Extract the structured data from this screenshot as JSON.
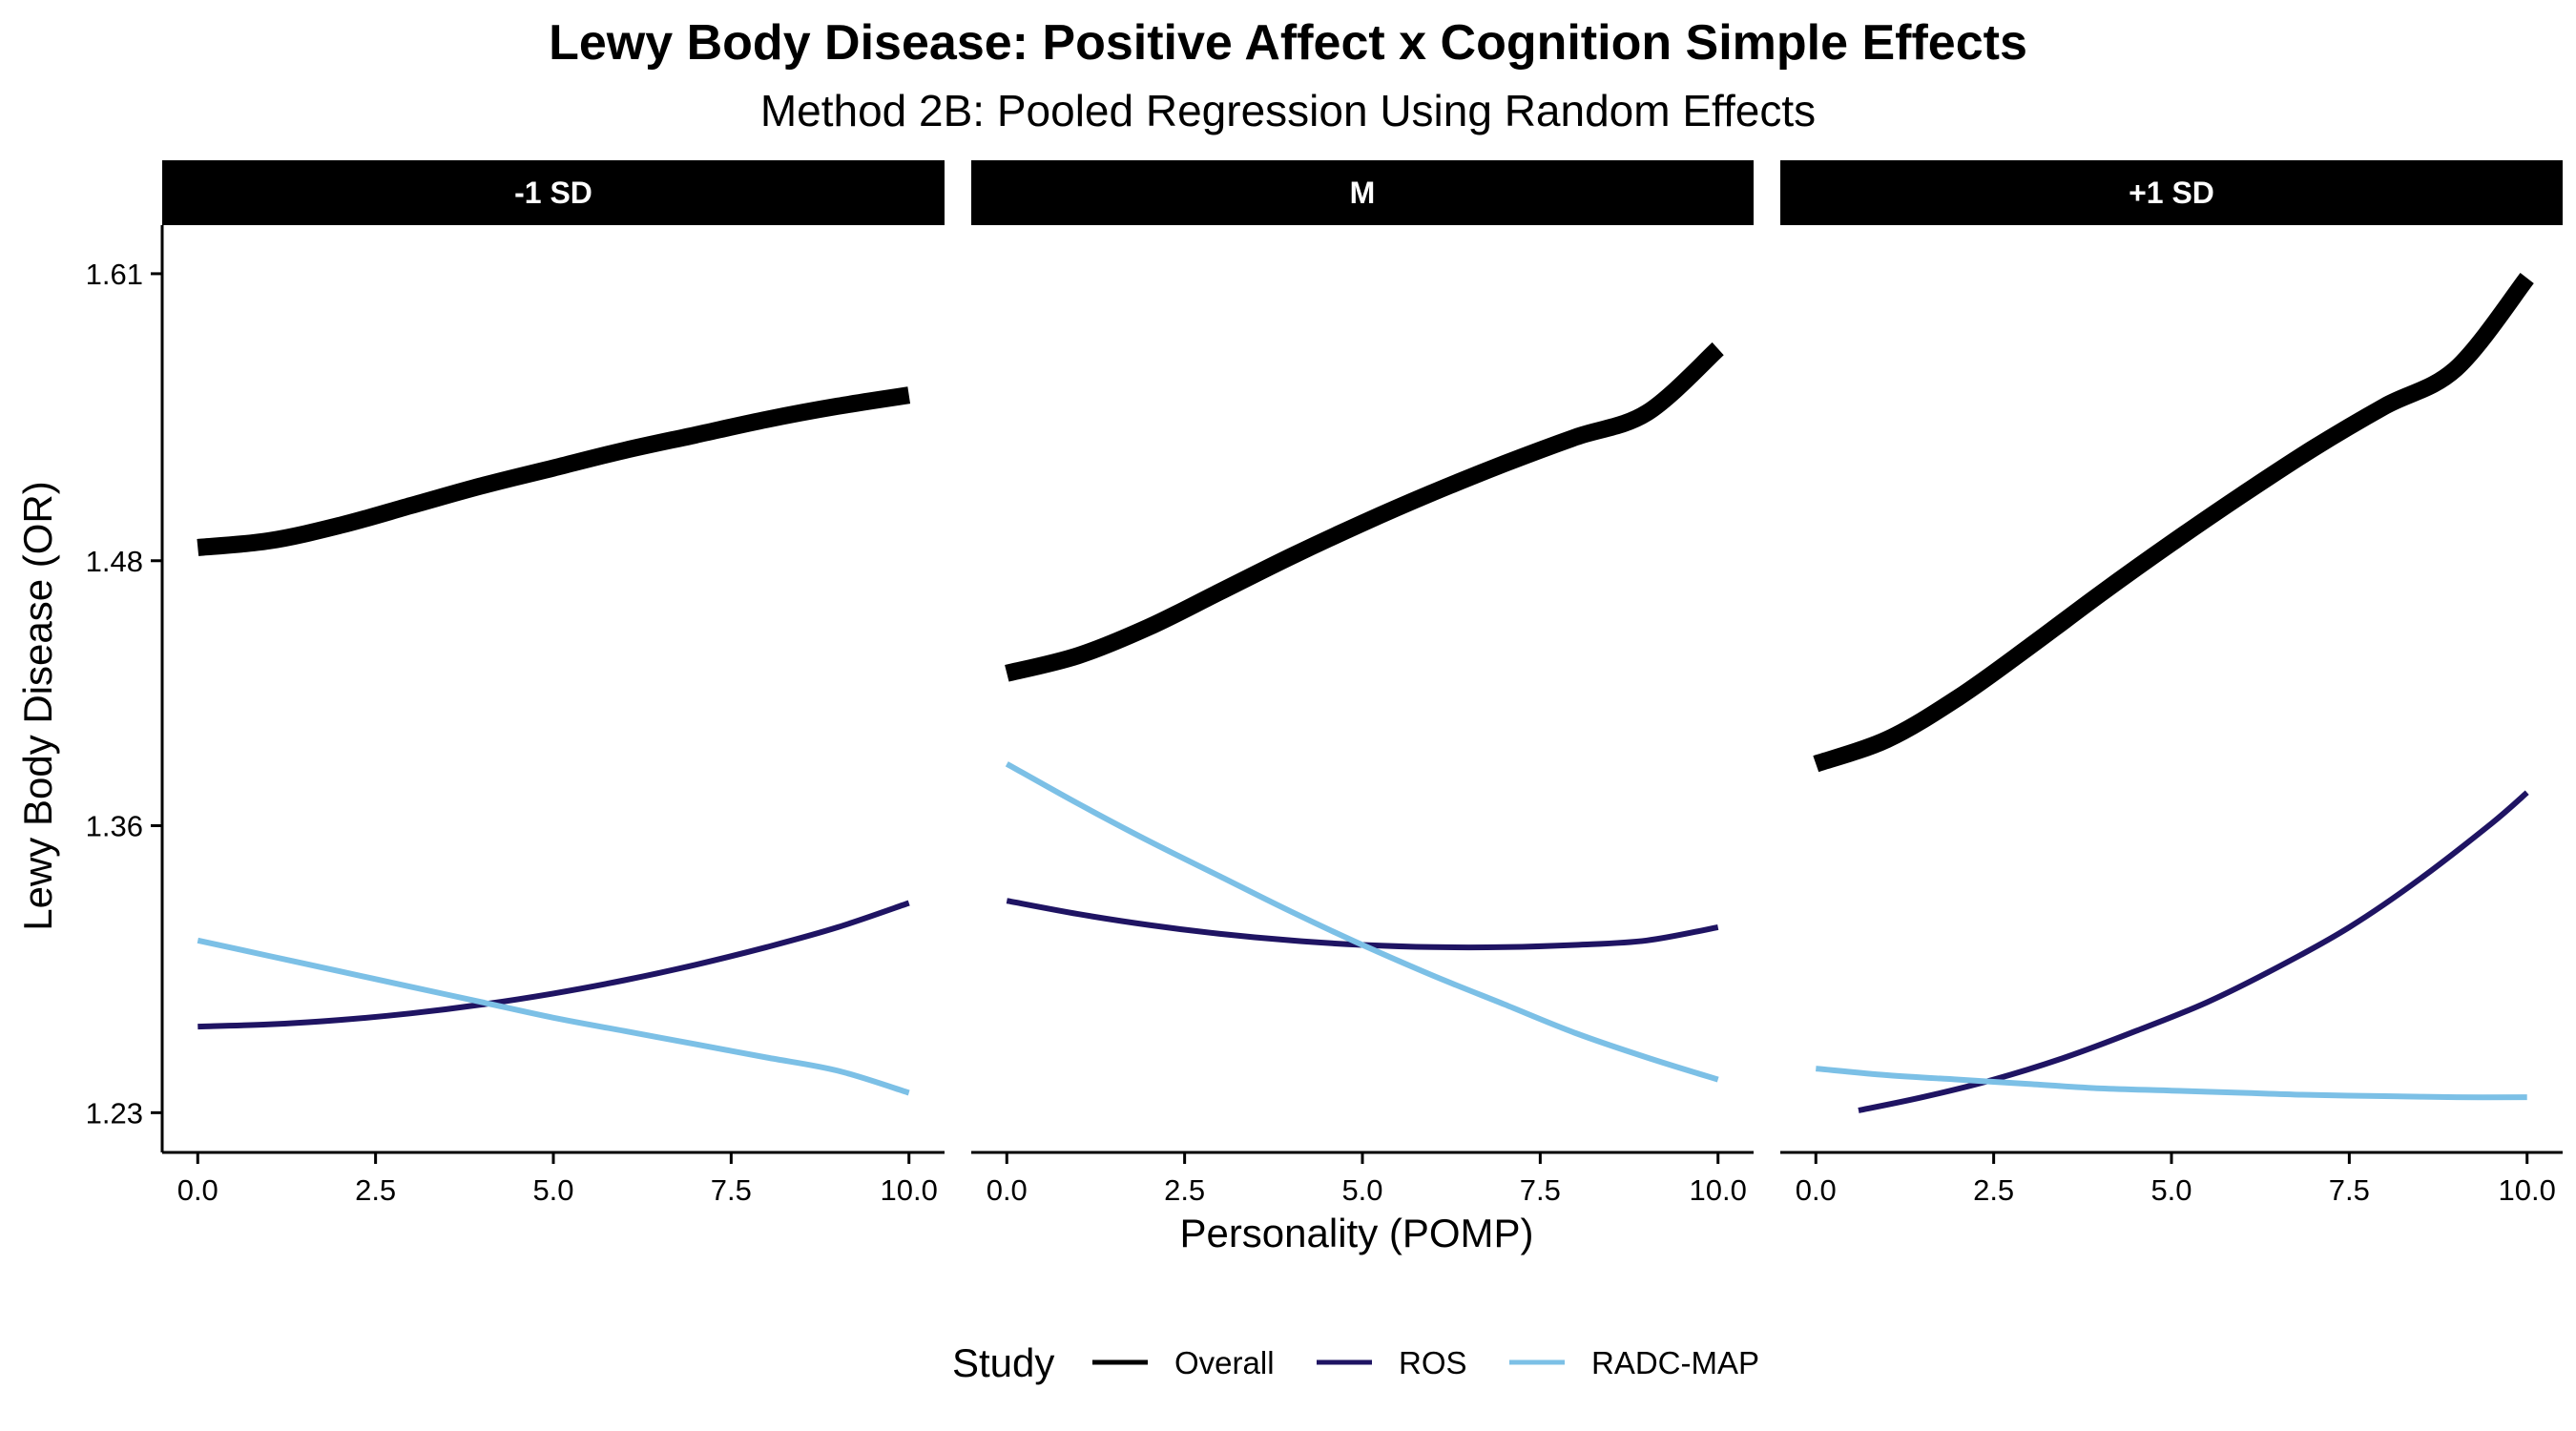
{
  "chart_data": {
    "type": "line",
    "title": "Lewy Body Disease: Positive Affect x Cognition Simple Effects",
    "subtitle": "Method 2B: Pooled Regression Using Random Effects",
    "xlabel": "Personality (POMP)",
    "ylabel": "Lewy Body Disease (OR)",
    "xlim": [
      -0.5,
      10.5
    ],
    "ylim": [
      1.212,
      1.632
    ],
    "x_ticks": [
      0,
      2.5,
      5,
      7.5,
      10
    ],
    "x_tick_labels": [
      "0.0",
      "2.5",
      "5.0",
      "7.5",
      "10.0"
    ],
    "y_ticks": [
      1.23,
      1.36,
      1.48,
      1.61
    ],
    "y_tick_labels": [
      "1.23",
      "1.36",
      "1.48",
      "1.61"
    ],
    "grid": false,
    "legend": {
      "title": "Study",
      "position": "bottom",
      "entries": [
        {
          "label": "Overall",
          "color": "#000000"
        },
        {
          "label": "ROS",
          "color": "#1f1463"
        },
        {
          "label": "RADC-MAP",
          "color": "#7cc0e6"
        }
      ]
    },
    "panels": [
      {
        "label": "-1 SD",
        "series": [
          {
            "name": "Overall",
            "color": "#000000",
            "x": [
              0,
              1,
              2,
              3,
              4,
              5,
              6,
              7,
              8,
              9,
              10
            ],
            "y": [
              1.486,
              1.489,
              1.496,
              1.505,
              1.514,
              1.522,
              1.53,
              1.537,
              1.544,
              1.55,
              1.555
            ]
          },
          {
            "name": "ROS",
            "color": "#1f1463",
            "x": [
              0,
              1,
              2,
              3,
              4,
              5,
              6,
              7,
              8,
              9,
              10
            ],
            "y": [
              1.269,
              1.27,
              1.272,
              1.275,
              1.279,
              1.284,
              1.29,
              1.297,
              1.305,
              1.314,
              1.325
            ]
          },
          {
            "name": "RADC-MAP",
            "color": "#7cc0e6",
            "x": [
              0,
              1,
              2,
              3,
              4,
              5,
              6,
              7,
              8,
              9,
              10
            ],
            "y": [
              1.308,
              1.301,
              1.294,
              1.287,
              1.28,
              1.273,
              1.267,
              1.261,
              1.255,
              1.249,
              1.239
            ]
          }
        ]
      },
      {
        "label": "M",
        "series": [
          {
            "name": "Overall",
            "color": "#000000",
            "x": [
              0,
              1,
              2,
              3,
              4,
              5,
              6,
              7,
              8,
              9,
              10
            ],
            "y": [
              1.429,
              1.437,
              1.45,
              1.466,
              1.482,
              1.497,
              1.511,
              1.524,
              1.536,
              1.547,
              1.576
            ]
          },
          {
            "name": "ROS",
            "color": "#1f1463",
            "x": [
              0,
              1,
              2,
              3,
              4,
              5,
              6,
              7,
              8,
              9,
              10
            ],
            "y": [
              1.326,
              1.32,
              1.315,
              1.311,
              1.308,
              1.306,
              1.305,
              1.305,
              1.306,
              1.308,
              1.314
            ]
          },
          {
            "name": "RADC-MAP",
            "color": "#7cc0e6",
            "x": [
              0,
              1,
              2,
              3,
              4,
              5,
              6,
              7,
              8,
              9,
              10
            ],
            "y": [
              1.388,
              1.37,
              1.353,
              1.337,
              1.321,
              1.306,
              1.292,
              1.279,
              1.266,
              1.255,
              1.245
            ]
          }
        ]
      },
      {
        "label": "+1 SD",
        "series": [
          {
            "name": "Overall",
            "color": "#000000",
            "x": [
              0,
              1,
              2,
              3,
              4,
              5,
              6,
              7,
              8,
              9,
              10
            ],
            "y": [
              1.388,
              1.399,
              1.418,
              1.441,
              1.465,
              1.488,
              1.51,
              1.531,
              1.55,
              1.567,
              1.608
            ]
          },
          {
            "name": "ROS",
            "color": "#1f1463",
            "x": [
              0.6,
              1.5,
              2.5,
              3.5,
              4.5,
              5.5,
              6.5,
              7.5,
              8.5,
              9.5,
              10
            ],
            "y": [
              1.231,
              1.237,
              1.245,
              1.255,
              1.267,
              1.28,
              1.296,
              1.314,
              1.336,
              1.361,
              1.375
            ]
          },
          {
            "name": "RADC-MAP",
            "color": "#7cc0e6",
            "x": [
              0,
              1,
              2,
              3,
              4,
              5,
              6,
              7,
              8,
              9,
              10
            ],
            "y": [
              1.25,
              1.247,
              1.245,
              1.243,
              1.241,
              1.24,
              1.239,
              1.238,
              1.2375,
              1.237,
              1.237
            ]
          }
        ]
      }
    ]
  }
}
